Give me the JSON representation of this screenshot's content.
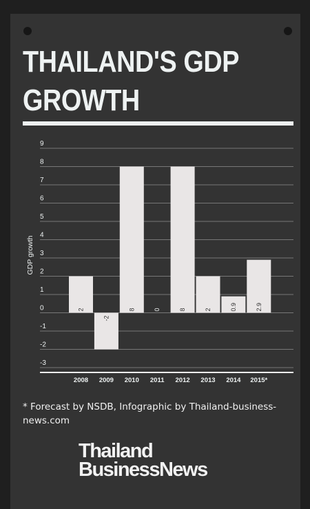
{
  "title": "THAILAND'S GDP GROWTH",
  "footnote": "* Forecast by NSDB, Infographic by Thailand-business-news.com",
  "brand": {
    "line1": "Thailand",
    "line2": "BusinessNews"
  },
  "colors": {
    "background": "#333333",
    "bar": "#e9e6e6",
    "text": "#eef2f2",
    "grid": "#777777"
  },
  "chart_data": {
    "type": "bar",
    "categories": [
      "2008",
      "2009",
      "2010",
      "2011",
      "2012",
      "2013",
      "2014",
      "2015*"
    ],
    "values": [
      2,
      -2,
      8,
      0,
      8,
      2,
      0.9,
      2.9
    ],
    "data_labels": [
      "2",
      "-2",
      "8",
      "0",
      "8",
      "2",
      "0.9",
      "2.9"
    ],
    "ylabel": "GDP growth",
    "xlabel": "",
    "ylim": [
      -3,
      9
    ],
    "yticks": [
      "9",
      "8",
      "7",
      "6",
      "5",
      "4",
      "3",
      "2",
      "1",
      "0",
      "-1",
      "-2",
      "-3"
    ],
    "grid": true
  }
}
